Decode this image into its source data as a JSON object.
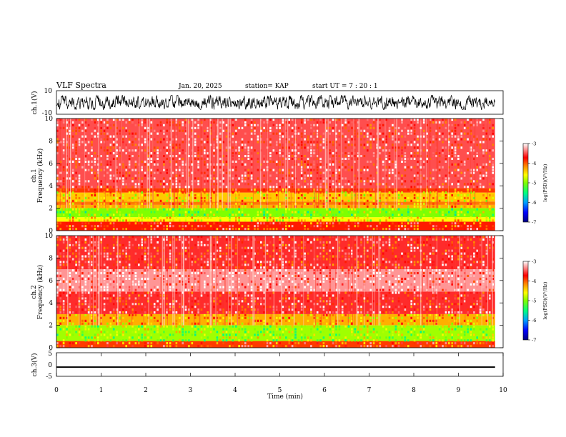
{
  "header": {
    "title": "VLF Spectra",
    "date": "Jan. 20, 2025",
    "station": "station= KAP",
    "start": "start  UT  =   7 : 20 : 1"
  },
  "colors": {
    "background": "#ffffff",
    "axis": "#000000",
    "colormap": [
      "#000080",
      "#0000ff",
      "#00a0ff",
      "#00ff80",
      "#80ff00",
      "#ffff00",
      "#ff8000",
      "#ff0000",
      "#ffffff"
    ]
  },
  "chart_data": [
    {
      "type": "line",
      "id": "ch1-waveform",
      "ylabel": "ch.1(V)",
      "ylim": [
        -10,
        10
      ],
      "yticks": [
        "10",
        "-10"
      ],
      "xlim": [
        0,
        10
      ],
      "data_end_min": 9.82,
      "signal": "dense noisy waveform",
      "typical_range_v": [
        -5,
        6
      ]
    },
    {
      "type": "heatmap",
      "id": "ch1-spectrogram",
      "ylabel": "ch.1\nFrequency  (kHz)",
      "ylim": [
        0,
        10
      ],
      "yticks": [
        "0",
        "2",
        "4",
        "6",
        "8",
        "10"
      ],
      "xlim": [
        0,
        10
      ],
      "data_end_min": 9.82,
      "bands": [
        {
          "f_min": 0.0,
          "f_max": 0.8,
          "level": -3.8
        },
        {
          "f_min": 0.8,
          "f_max": 1.2,
          "level": -4.6
        },
        {
          "f_min": 1.2,
          "f_max": 2.0,
          "level": -5.0
        },
        {
          "f_min": 2.0,
          "f_max": 2.3,
          "level": -4.3
        },
        {
          "f_min": 2.3,
          "f_max": 2.6,
          "level": -4.1
        },
        {
          "f_min": 2.6,
          "f_max": 3.4,
          "level": -4.4
        },
        {
          "f_min": 3.4,
          "f_max": 3.8,
          "level": -3.9
        },
        {
          "f_min": 3.8,
          "f_max": 10.0,
          "level": -3.5
        }
      ],
      "colorbar": {
        "label": "log(PSD)(V²/Hz)",
        "range": [
          -7,
          -3
        ],
        "ticks": [
          "-3",
          "-4",
          "-5",
          "-6",
          "-7"
        ]
      }
    },
    {
      "type": "heatmap",
      "id": "ch2-spectrogram",
      "ylabel": "ch.2\nFrequency  (kHz)",
      "ylim": [
        0,
        10
      ],
      "yticks": [
        "0",
        "2",
        "4",
        "6",
        "8",
        "10"
      ],
      "xlim": [
        0,
        10
      ],
      "data_end_min": 9.82,
      "bands": [
        {
          "f_min": 0.0,
          "f_max": 0.6,
          "level": -3.9
        },
        {
          "f_min": 0.6,
          "f_max": 2.0,
          "level": -4.9
        },
        {
          "f_min": 2.0,
          "f_max": 3.0,
          "level": -4.3
        },
        {
          "f_min": 3.0,
          "f_max": 5.0,
          "level": -3.6
        },
        {
          "f_min": 5.0,
          "f_max": 7.0,
          "level": -3.3
        },
        {
          "f_min": 7.0,
          "f_max": 10.0,
          "level": -3.6
        }
      ],
      "colorbar": {
        "label": "log(PSD)(V²/Hz)",
        "range": [
          -7,
          -3
        ],
        "ticks": [
          "-3",
          "-4",
          "-5",
          "-6",
          "-7"
        ]
      }
    },
    {
      "type": "line",
      "id": "ch3-waveform",
      "ylabel": "ch.3(V)",
      "ylim": [
        -5,
        5
      ],
      "yticks": [
        "5",
        "0",
        "-5"
      ],
      "xlim": [
        0,
        10
      ],
      "data_end_min": 9.82,
      "signal": "thick band around -1 V",
      "band_v": [
        -1.4,
        -0.8
      ],
      "xlabel": "Time  (min)",
      "xticks": [
        "0",
        "1",
        "2",
        "3",
        "4",
        "5",
        "6",
        "7",
        "8",
        "9",
        "10"
      ]
    }
  ]
}
